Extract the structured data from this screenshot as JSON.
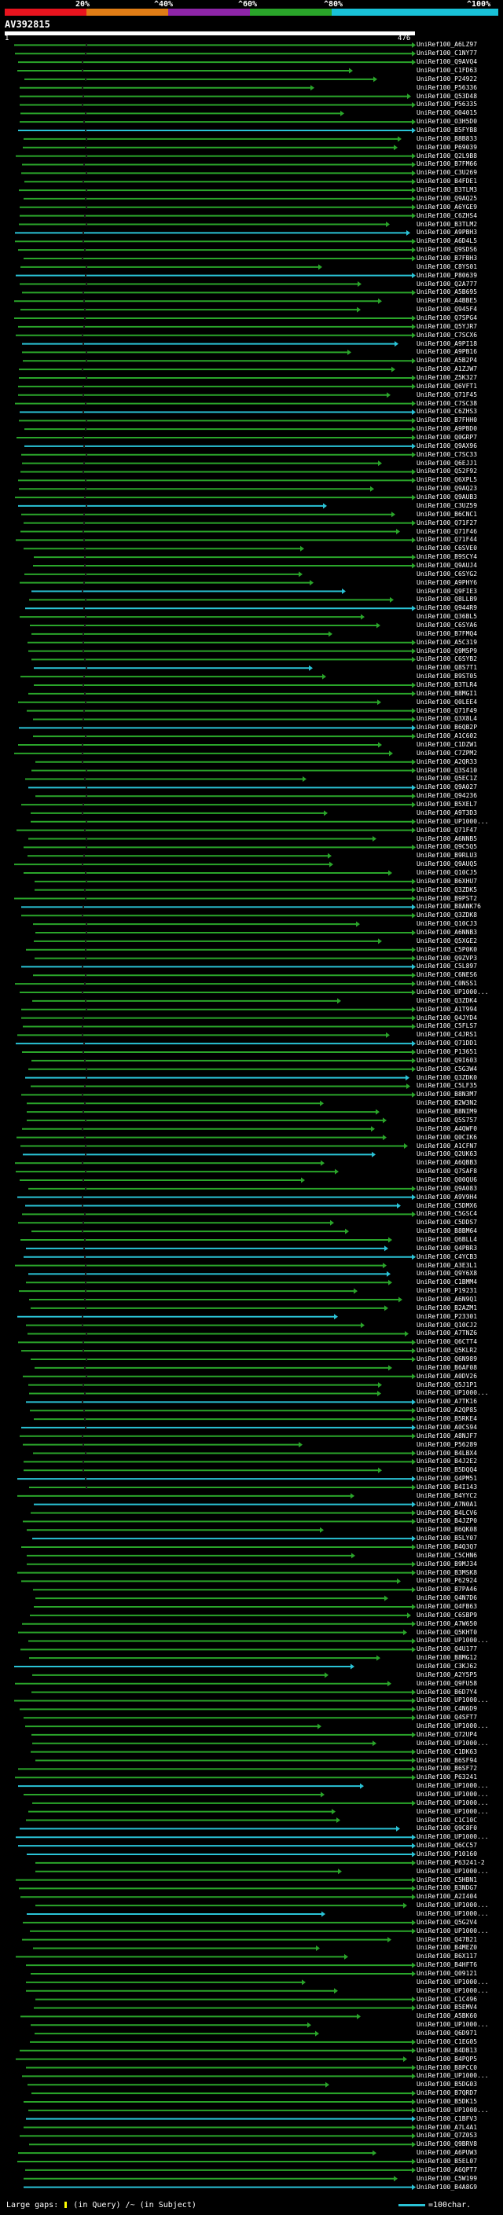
{
  "scale": {
    "labels": [
      "20%",
      "^40%",
      "^60%",
      "^80%",
      "^100%"
    ],
    "colors": [
      "#e8141e",
      "#e07d16",
      "#8e25a8",
      "#2aa52a",
      "#19c2d8"
    ]
  },
  "query": {
    "title": "AV392815",
    "start": "1",
    "end": "476"
  },
  "hits": [
    "UniRef100_A6LZ97",
    "UniRef100_C1NY77",
    "UniRef100_Q9AVQ4",
    "UniRef100_C1FD63",
    "UniRef100_P24922",
    "UniRef100_P56336",
    "UniRef100_Q53D48",
    "UniRef100_P56335",
    "UniRef100_O04015",
    "UniRef100_O3H5D0",
    "UniRef100_B5FYB8",
    "UniRef100_B8B833",
    "UniRef100_P69039",
    "UniRef100_Q2L9B8",
    "UniRef100_B7FM66",
    "UniRef100_C3U269",
    "UniRef100_B4FDE1",
    "UniRef100_B3TLM3",
    "UniRef100_Q9AQ25",
    "UniRef100_A6YGE9",
    "UniRef100_C6ZHS4",
    "UniRef100_B3TLM2",
    "UniRef100_A9PBH3",
    "UniRef100_A6D4L5",
    "UniRef100_Q9SDS6",
    "UniRef100_B7FBH3",
    "UniRef100_C8YS01",
    "UniRef100_P80639",
    "UniRef100_Q2A777",
    "UniRef100_A5B695",
    "UniRef100_A4BBE5",
    "UniRef100_Q945F4",
    "UniRef100_Q7SPG4",
    "UniRef100_Q5YJR7",
    "UniRef100_C7SCX6",
    "UniRef100_A9PI18",
    "UniRef100_A9PB16",
    "UniRef100_A5B2P4",
    "UniRef100_A1ZJW7",
    "UniRef100_Z5K327",
    "UniRef100_Q6VFT1",
    "UniRef100_Q71F45",
    "UniRef100_C7SC38",
    "UniRef100_C6ZHS3",
    "UniRef100_B7FHH0",
    "UniRef100_A9PBD0",
    "UniRef100_Q0GRP7",
    "UniRef100_Q9AX96",
    "UniRef100_C7SC33",
    "UniRef100_Q6EJJ1",
    "UniRef100_Q52F92",
    "UniRef100_Q6XPL5",
    "UniRef100_Q9AQ23",
    "UniRef100_Q9AUB3",
    "UniRef100_C3UZ59",
    "UniRef100_B6CNC1",
    "UniRef100_Q71F27",
    "UniRef100_Q71F46",
    "UniRef100_Q71F44",
    "UniRef100_C6SVE0",
    "UniRef100_B9SCY4",
    "UniRef100_Q9AUJ4",
    "UniRef100_C6SYG2",
    "UniRef100_A9PHY6",
    "UniRef100_Q9FIE3",
    "UniRef100_Q8LLB9",
    "UniRef100_Q944R9",
    "UniRef100_Q36BL5",
    "UniRef100_C6SYA6",
    "UniRef100_B7FMQ4",
    "UniRef100_A5C319",
    "UniRef100_Q9M5P9",
    "UniRef100_C6SYB2",
    "UniRef100_Q8S7T1",
    "UniRef100_B9ST05",
    "UniRef100_B3TLR4",
    "UniRef100_B8MGI1",
    "UniRef100_Q0LEE4",
    "UniRef100_Q71F49",
    "UniRef100_Q3X8L4",
    "UniRef100_B6QB2P",
    "UniRef100_A1C602",
    "UniRef100_C1DZW1",
    "UniRef100_C7ZPM2",
    "UniRef100_A2QR33",
    "UniRef100_Q3S410",
    "UniRef100_Q5EC1Z",
    "UniRef100_Q9A027",
    "UniRef100_Q94236",
    "UniRef100_B5XEL7",
    "UniRef100_A9T3D3",
    "UniRef100_UP1000...",
    "UniRef100_Q71F47",
    "UniRef100_A6NNB5",
    "UniRef100_Q9C5Q5",
    "UniRef100_B9RLU3",
    "UniRef100_Q9AUQ5",
    "UniRef100_Q10CJ5",
    "UniRef100_B6XHU7",
    "UniRef100_Q3ZDK5",
    "UniRef100_B9PST2",
    "UniRef100_B8ANK76",
    "UniRef100_Q3ZDK8",
    "UniRef100_Q10CJ3",
    "UniRef100_A6NNB3",
    "UniRef100_Q5XGE2",
    "UniRef100_C5P0K0",
    "UniRef100_Q9ZVP3",
    "UniRef100_C5L897",
    "UniRef100_C6NES6",
    "UniRef100_C0NSS1",
    "UniRef100_UP1000...",
    "UniRef100_Q3ZDK4",
    "UniRef100_A1T994",
    "UniRef100_Q4JYD4",
    "UniRef100_C5FLS7",
    "UniRef100_C4JRS1",
    "UniRef100_Q71DD1",
    "UniRef100_P13651",
    "UniRef100_Q9I603",
    "UniRef100_C5G3W4",
    "UniRef100_Q3ZDK0",
    "UniRef100_C5LF35",
    "UniRef100_B8N3M7",
    "UniRef100_B2W3N2",
    "UniRef100_B8NIM9",
    "UniRef100_Q5S757",
    "UniRef100_A4QWF0",
    "UniRef100_Q0CIK6",
    "UniRef100_A1CFN7",
    "UniRef100_Q2UK63",
    "UniRef100_A6QBB3",
    "UniRef100_Q7SAF8",
    "UniRef100_Q00QU6",
    "UniRef100_Q9A083",
    "UniRef100_A9V9H4",
    "UniRef100_C5DMX6",
    "UniRef100_C5GSC4",
    "UniRef100_C5DDS7",
    "UniRef100_B8BM64",
    "UniRef100_Q6BLL4",
    "UniRef100_Q4PBR3",
    "UniRef100_C4YCB3",
    "UniRef100_A3E3L1",
    "UniRef100_Q9Y6X8",
    "UniRef100_C1BMM4",
    "UniRef100_P19231",
    "UniRef100_A6N9Q1",
    "UniRef100_B2AZM1",
    "UniRef100_P23301",
    "UniRef100_Q10CJ2",
    "UniRef100_A7TNZ6",
    "UniRef100_Q6CTT4",
    "UniRef100_Q5KLR2",
    "UniRef100_Q6N989",
    "UniRef100_B6AF08",
    "UniRef100_A0DV26",
    "UniRef100_Q5J1P1",
    "UniRef100_UP1000...",
    "UniRef100_A7TK16",
    "UniRef100_A2QP85",
    "UniRef100_B5RKE4",
    "UniRef100_A0CS94",
    "UniRef100_A8NJF7",
    "UniRef100_P56289",
    "UniRef100_B4LBX4",
    "UniRef100_B4J2E2",
    "UniRef100_B5DQQ4",
    "UniRef100_Q4PM51",
    "UniRef100_B4I143",
    "UniRef100_B4YYC2",
    "UniRef100_A7N0A1",
    "UniRef100_B4LCV6",
    "UniRef100_B4JZP0",
    "UniRef100_B6QK08",
    "UniRef100_B5LY07",
    "UniRef100_B4Q3Q7",
    "UniRef100_C5CHN6",
    "UniRef100_B9MJ34",
    "UniRef100_B3MSK8",
    "UniRef100_P62924",
    "UniRef100_B7PA46",
    "UniRef100_Q4N7D6",
    "UniRef100_Q4FB63",
    "UniRef100_C6SBP9",
    "UniRef100_A7W650",
    "UniRef100_Q5KHT0",
    "UniRef100_UP1000...",
    "UniRef100_Q4U177",
    "UniRef100_B8MG12",
    "UniRef100_C3KJ62",
    "UniRef100_A2Y5P5",
    "UniRef100_Q9FU58",
    "UniRef100_B6D7Y4",
    "UniRef100_UP1000...",
    "UniRef100_C4N6D9",
    "UniRef100_Q4SFT7",
    "UniRef100_UP1000...",
    "UniRef100_Q72UP4",
    "UniRef100_UP1000...",
    "UniRef100_C1DK63",
    "UniRef100_B6SF94",
    "UniRef100_B6SF72",
    "UniRef100_P63241",
    "UniRef100_UP1000...",
    "UniRef100_UP1000...",
    "UniRef100_UP1000...",
    "UniRef100_UP1000...",
    "UniRef100_C1C10C",
    "UniRef100_Q9C8F0",
    "UniRef100_UP1000...",
    "UniRef100_Q6CC57",
    "UniRef100_P10160",
    "UniRef100_P63241-2",
    "UniRef100_UP1000...",
    "UniRef100_C5HBN1",
    "UniRef100_B3NDG7",
    "UniRef100_A2I404",
    "UniRef100_UP1000...",
    "UniRef100_UP1000...",
    "UniRef100_Q5G2V4",
    "UniRef100_UP1000...",
    "UniRef100_Q47B21",
    "UniRef100_B4MEZ0",
    "UniRef100_B6X117",
    "UniRef100_B4HFT6",
    "UniRef100_Q09121",
    "UniRef100_UP1000...",
    "UniRef100_UP1000...",
    "UniRef100_C1C496",
    "UniRef100_B5EMV4",
    "UniRef100_A5BK60",
    "UniRef100_UP1000...",
    "UniRef100_Q6D971",
    "UniRef100_C1EG05",
    "UniRef100_B4DB13",
    "UniRef100_B4PQP5",
    "UniRef100_B8PCC0",
    "UniRef100_UP1000...",
    "UniRef100_B5DG03",
    "UniRef100_B7QRD7",
    "UniRef100_B5DK15",
    "UniRef100_UP1000...",
    "UniRef100_C1BFV3",
    "UniRef100_A7L4A1",
    "UniRef100_Q7Z0S3",
    "UniRef100_Q9BRV8",
    "UniRef100_A6PUW3",
    "UniRef100_B5EL07",
    "UniRef100_A6QPT7",
    "UniRef100_C5W199",
    "UniRef100_B4A8G9"
  ],
  "footer": {
    "prefix": "Large gaps:",
    "in_query": "(in Query)",
    "sep": "/~",
    "in_subject": "(in Subject)"
  },
  "legend": {
    "text": "=100char."
  }
}
